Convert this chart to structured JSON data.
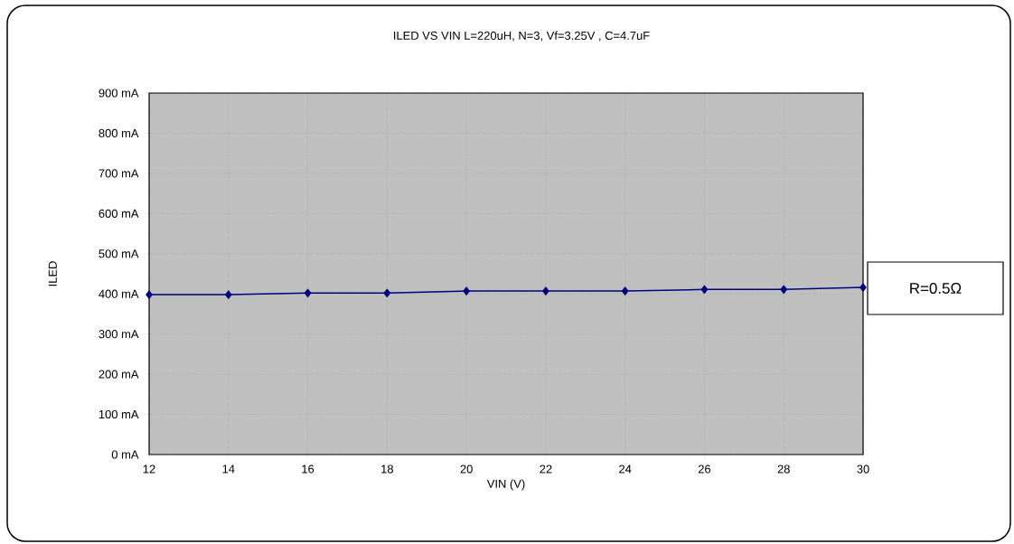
{
  "chart_data": {
    "type": "line",
    "title": "ILED VS VIN L=220uH, N=3, Vf=3.25V , C=4.7uF",
    "xlabel": "VIN (V)",
    "ylabel": "ILED",
    "x": [
      12,
      14,
      16,
      18,
      20,
      22,
      24,
      26,
      28,
      30
    ],
    "series": [
      {
        "color": "#000080",
        "values": [
          398,
          398,
          402,
          402,
          407,
          407,
          407,
          411,
          411,
          416
        ]
      }
    ],
    "xlim": [
      12,
      30
    ],
    "xticks": [
      12,
      14,
      16,
      18,
      20,
      22,
      24,
      26,
      28,
      30
    ],
    "ylim": [
      0,
      900
    ],
    "yticks": [
      {
        "value": 0,
        "label": "0 mA"
      },
      {
        "value": 100,
        "label": "100 mA"
      },
      {
        "value": 200,
        "label": "200 mA"
      },
      {
        "value": 300,
        "label": "300 mA"
      },
      {
        "value": 400,
        "label": "400 mA"
      },
      {
        "value": 500,
        "label": "500 mA"
      },
      {
        "value": 600,
        "label": "600 mA"
      },
      {
        "value": 700,
        "label": "700 mA"
      },
      {
        "value": 800,
        "label": "800 mA"
      },
      {
        "value": 900,
        "label": "900 mA"
      }
    ],
    "grid": true,
    "marker": "diamond",
    "line_style": "solid",
    "annotations": [
      "R=0.5Ω"
    ]
  }
}
